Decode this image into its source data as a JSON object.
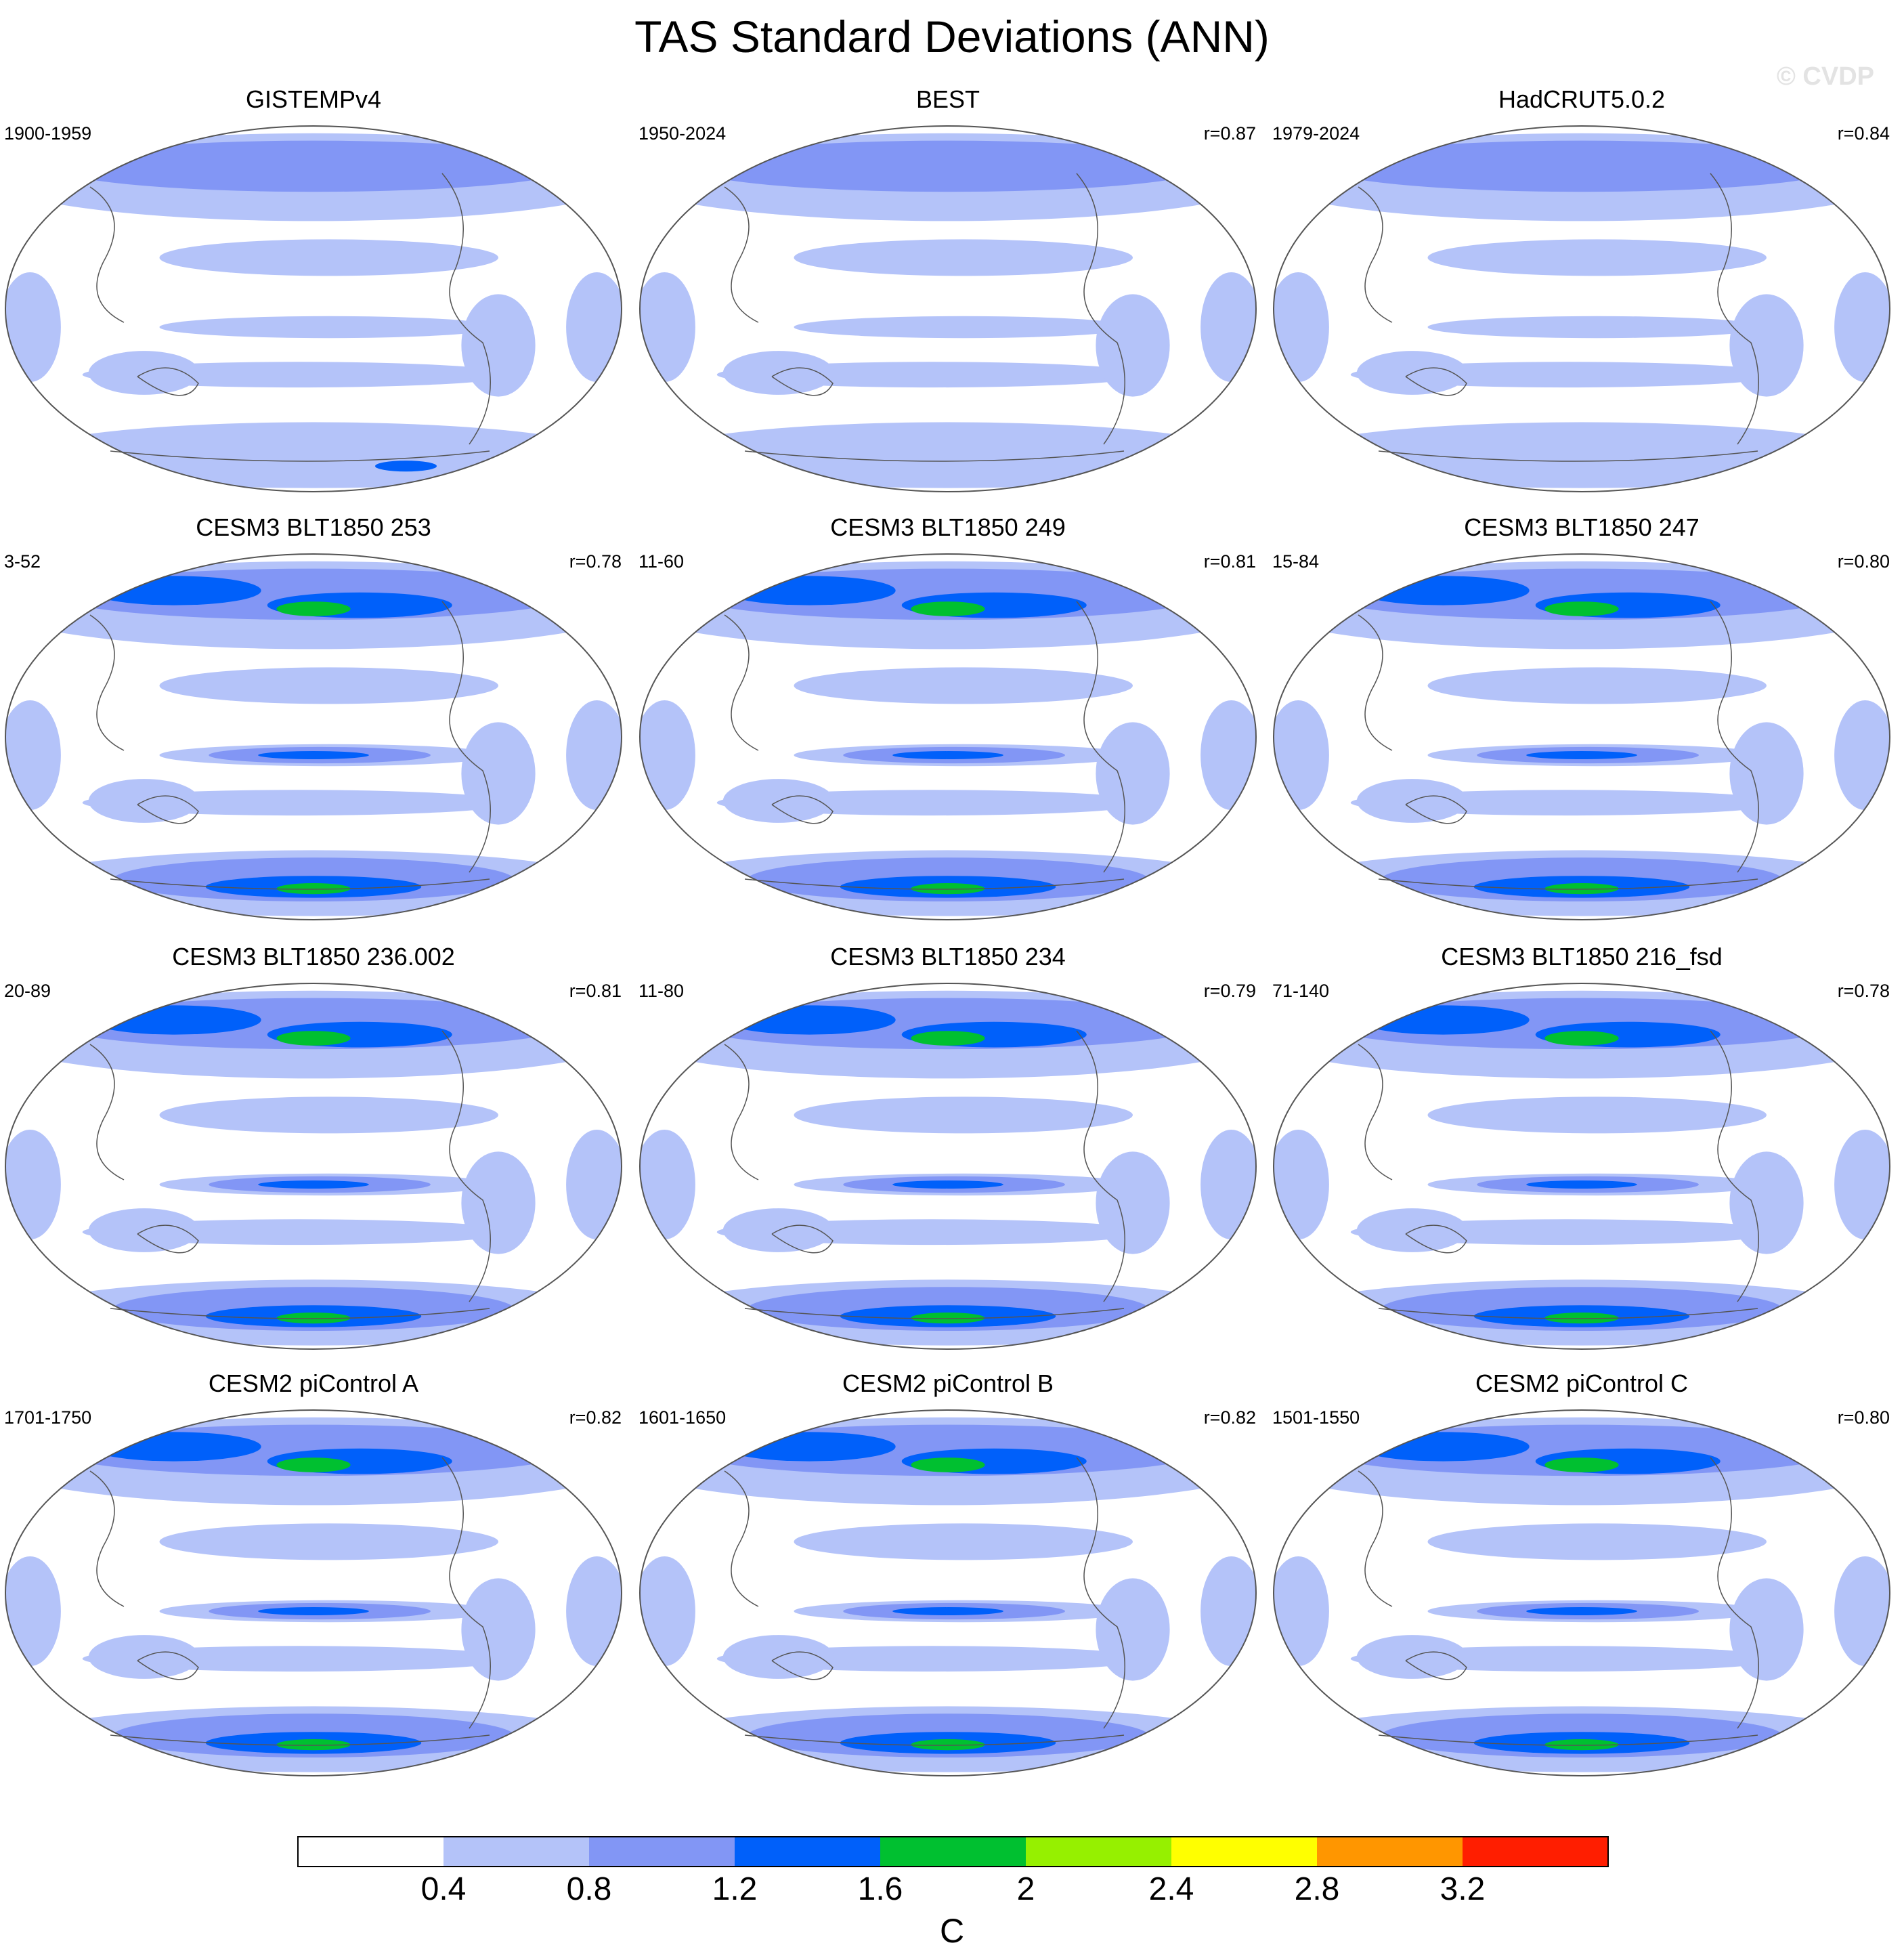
{
  "title": "TAS Standard Deviations (ANN)",
  "watermark": "© CVDP",
  "colorbar": {
    "labels": [
      "0.4",
      "0.8",
      "1.2",
      "1.6",
      "2",
      "2.4",
      "2.8",
      "3.2"
    ],
    "colors": [
      "#ffffff",
      "#b4c3f9",
      "#8296f5",
      "#0060fa",
      "#00c030",
      "#96f000",
      "#ffff00",
      "#ff9600",
      "#ff1e00"
    ],
    "units": "C"
  },
  "panels": [
    {
      "title": "GISTEMPv4",
      "period": "1900-1959",
      "r": ""
    },
    {
      "title": "BEST",
      "period": "1950-2024",
      "r": "r=0.87"
    },
    {
      "title": "HadCRUT5.0.2",
      "period": "1979-2024",
      "r": "r=0.84"
    },
    {
      "title": "CESM3 BLT1850 253",
      "period": "3-52",
      "r": "r=0.78"
    },
    {
      "title": "CESM3 BLT1850 249",
      "period": "11-60",
      "r": "r=0.81"
    },
    {
      "title": "CESM3 BLT1850 247",
      "period": "15-84",
      "r": "r=0.80"
    },
    {
      "title": "CESM3 BLT1850 236.002",
      "period": "20-89",
      "r": "r=0.81"
    },
    {
      "title": "CESM3 BLT1850 234",
      "period": "11-80",
      "r": "r=0.79"
    },
    {
      "title": "CESM3 BLT1850 216_fsd",
      "period": "71-140",
      "r": "r=0.78"
    },
    {
      "title": "CESM2 piControl A",
      "period": "1701-1750",
      "r": "r=0.82"
    },
    {
      "title": "CESM2 piControl B",
      "period": "1601-1650",
      "r": "r=0.82"
    },
    {
      "title": "CESM2 piControl C",
      "period": "1501-1550",
      "r": "r=0.80"
    }
  ]
}
